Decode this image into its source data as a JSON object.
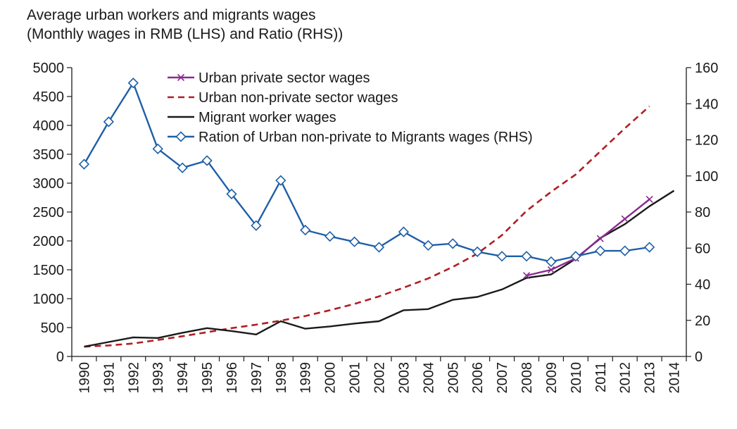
{
  "chart_data": {
    "type": "line",
    "title": "Average urban workers and migrants wages",
    "subtitle": "(Monthly wages in RMB (LHS) and Ratio (RHS))",
    "x": [
      1990,
      1991,
      1992,
      1993,
      1994,
      1995,
      1996,
      1997,
      1998,
      1999,
      2000,
      2001,
      2002,
      2003,
      2004,
      2005,
      2006,
      2007,
      2008,
      2009,
      2010,
      2011,
      2012,
      2013,
      2014
    ],
    "x_tick_labels": [
      "1990",
      "1991",
      "1992",
      "1993",
      "1994",
      "1995",
      "1996",
      "1997",
      "1998",
      "1999",
      "2000",
      "2001",
      "2002",
      "2003",
      "2004",
      "2005",
      "2006",
      "2007",
      "2008",
      "2009",
      "2010",
      "2011",
      "2012",
      "2013",
      "2014"
    ],
    "ylim_left": [
      0,
      5000
    ],
    "yticks_left": [
      "0",
      "500",
      "1000",
      "1500",
      "2000",
      "2500",
      "3000",
      "3500",
      "4000",
      "4500",
      "5000"
    ],
    "ylim_right": [
      0,
      160
    ],
    "yticks_right": [
      "0",
      "20",
      "40",
      "60",
      "80",
      "100",
      "120",
      "140",
      "160"
    ],
    "legend_position": "top-center",
    "series": [
      {
        "name": "Urban private sector wages",
        "axis": "left",
        "color": "#8b2a8f",
        "style": "solid",
        "marker": "x",
        "x": [
          2008,
          2009,
          2010,
          2011,
          2012,
          2013
        ],
        "values": [
          1400,
          1500,
          1700,
          2040,
          2380,
          2720
        ]
      },
      {
        "name": "Urban non-private sector wages",
        "axis": "left",
        "color": "#b01e23",
        "style": "dashed",
        "marker": "none",
        "x": [
          1990,
          1991,
          1992,
          1993,
          1994,
          1995,
          1996,
          1997,
          1998,
          1999,
          2000,
          2001,
          2002,
          2003,
          2004,
          2005,
          2006,
          2007,
          2008,
          2009,
          2010,
          2011,
          2012,
          2013
        ],
        "values": [
          170,
          190,
          225,
          285,
          350,
          420,
          490,
          550,
          620,
          700,
          800,
          910,
          1040,
          1190,
          1350,
          1550,
          1780,
          2100,
          2520,
          2850,
          3150,
          3550,
          3950,
          4330
        ]
      },
      {
        "name": "Migrant worker wages",
        "axis": "left",
        "color": "#1a1a1a",
        "style": "solid",
        "marker": "none",
        "x": [
          1990,
          1991,
          1992,
          1993,
          1994,
          1995,
          1996,
          1997,
          1998,
          1999,
          2000,
          2001,
          2002,
          2003,
          2004,
          2005,
          2006,
          2007,
          2008,
          2009,
          2010,
          2011,
          2012,
          2013,
          2014
        ],
        "values": [
          170,
          250,
          330,
          320,
          410,
          490,
          440,
          380,
          610,
          480,
          520,
          570,
          610,
          800,
          820,
          980,
          1030,
          1160,
          1360,
          1420,
          1690,
          2050,
          2290,
          2600,
          2870
        ]
      },
      {
        "name": "Ration of Urban non-private to Migrants wages (RHS)",
        "axis": "right",
        "color": "#1f5fa6",
        "style": "solid",
        "marker": "diamond",
        "x": [
          1990,
          1991,
          1992,
          1993,
          1994,
          1995,
          1996,
          1997,
          1998,
          1999,
          2000,
          2001,
          2002,
          2003,
          2004,
          2005,
          2006,
          2007,
          2008,
          2009,
          2010,
          2011,
          2012,
          2013
        ],
        "values": [
          106.5,
          130,
          151.5,
          115,
          104.5,
          108.5,
          90,
          72.5,
          97.5,
          70,
          66.5,
          63.5,
          60.5,
          69,
          61.5,
          62.5,
          58,
          55.5,
          55.5,
          52.5,
          55.5,
          58.5,
          58.5,
          60.5
        ]
      }
    ]
  }
}
